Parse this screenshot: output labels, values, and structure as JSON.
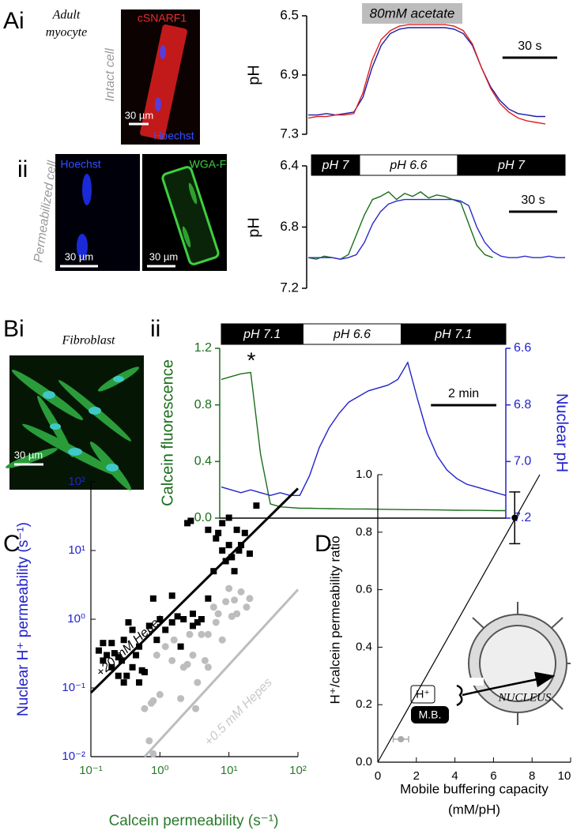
{
  "panel_labels": [
    "Ai",
    "ii",
    "Bi",
    "ii",
    "C",
    "D"
  ],
  "captions": {
    "adult": [
      "Adult",
      "myocyte"
    ],
    "intact": "Intact cell",
    "permeabilized": "Permeabilized cell",
    "fibroblast": "Fibroblast"
  },
  "micrographs": [
    {
      "labels": [
        "cSNARF1",
        "Hoechst"
      ],
      "scale": "30 µm"
    },
    {
      "labels": [
        "Hoechst"
      ],
      "scale": "30 µm"
    },
    {
      "labels": [
        "WGA-F"
      ],
      "scale": "30 µm"
    },
    {
      "scale": "30 µm"
    }
  ],
  "chart_data": [
    {
      "type": "line",
      "y_label": "pH",
      "annotation": {
        "label": "80mM acetate",
        "from": 29.5,
        "to": 84.5
      },
      "scale_bar": {
        "value": 30,
        "label": "30 s"
      },
      "x": [
        0,
        5,
        10,
        15,
        20,
        25,
        30,
        35,
        40,
        45,
        50,
        55,
        60,
        65,
        70,
        75,
        80,
        85,
        90,
        95,
        100,
        105,
        110,
        115,
        120,
        125,
        130
      ],
      "xlim": [
        0,
        130
      ],
      "ylim": [
        7.3,
        6.5
      ],
      "yticks": [
        6.5,
        6.9,
        7.3
      ],
      "series": [
        {
          "color": "#1a1aa8",
          "values": [
            7.17,
            7.17,
            7.16,
            7.17,
            7.16,
            7.15,
            7.05,
            6.85,
            6.7,
            6.62,
            6.59,
            6.58,
            6.58,
            6.58,
            6.58,
            6.58,
            6.59,
            6.62,
            6.7,
            6.85,
            6.98,
            7.07,
            7.13,
            7.16,
            7.17,
            7.18,
            7.18
          ]
        },
        {
          "color": "#e02020",
          "values": [
            7.19,
            7.18,
            7.18,
            7.17,
            7.17,
            7.16,
            7.02,
            6.8,
            6.66,
            6.6,
            6.57,
            6.56,
            6.56,
            6.56,
            6.56,
            6.56,
            6.57,
            6.6,
            6.69,
            6.85,
            6.99,
            7.09,
            7.15,
            7.19,
            7.21,
            7.22,
            7.23
          ]
        }
      ]
    },
    {
      "type": "line",
      "y_label": "pH",
      "scale_bar": {
        "value": 30,
        "label": "30 s"
      },
      "conditions": [
        {
          "label": "pH 7",
          "from": 2,
          "to": 32,
          "color": "#000"
        },
        {
          "label": "pH 6.6",
          "from": 32,
          "to": 93,
          "color": "#fff"
        },
        {
          "label": "pH 7",
          "from": 93,
          "to": 160,
          "color": "#000"
        }
      ],
      "x": [
        0,
        5,
        10,
        15,
        20,
        25,
        30,
        35,
        40,
        45,
        50,
        55,
        60,
        65,
        70,
        75,
        80,
        85,
        90,
        95,
        100,
        105,
        110,
        115,
        120,
        125,
        130,
        135,
        140,
        145,
        150,
        155,
        160
      ],
      "xlim": [
        0,
        160
      ],
      "ylim": [
        7.2,
        6.4
      ],
      "yticks": [
        6.4,
        6.8,
        7.2
      ],
      "series": [
        {
          "color": "#1a6e1a",
          "values": [
            7.0,
            7.01,
            6.99,
            7.0,
            7.01,
            6.98,
            6.85,
            6.72,
            6.62,
            6.6,
            6.57,
            6.62,
            6.58,
            6.6,
            6.57,
            6.61,
            6.59,
            6.6,
            6.62,
            6.64,
            6.78,
            6.92,
            6.98,
            7.0,
            null,
            null,
            null,
            null,
            null,
            null,
            null,
            null,
            null
          ]
        },
        {
          "color": "#2a2ad0",
          "values": [
            7.0,
            7.0,
            7.0,
            7.0,
            7.01,
            7.0,
            6.98,
            6.9,
            6.78,
            6.7,
            6.65,
            6.63,
            6.62,
            6.62,
            6.62,
            6.62,
            6.62,
            6.62,
            6.62,
            6.63,
            6.66,
            6.8,
            6.9,
            6.96,
            6.99,
            7.0,
            7.0,
            6.99,
            7.0,
            7.0,
            6.99,
            7.0,
            7.0
          ]
        }
      ]
    },
    {
      "type": "line",
      "y_label": "Calcein fluorescence",
      "y2_label": "Nuclear pH",
      "y_color": "#1a6e1a",
      "y2_color": "#2222cc",
      "asterisk": "*",
      "scale_bar": {
        "value": 2,
        "label": "2 min"
      },
      "conditions": [
        {
          "label": "pH 7.1",
          "from": 0,
          "to": 2.5,
          "color": "#000"
        },
        {
          "label": "pH 6.6",
          "from": 2.5,
          "to": 5.5,
          "color": "#fff"
        },
        {
          "label": "pH 7.1",
          "from": 5.5,
          "to": 8.7,
          "color": "#000"
        }
      ],
      "x": [
        0,
        0.3,
        0.6,
        0.9,
        1.2,
        1.5,
        1.8,
        2.1,
        2.4,
        2.7,
        3,
        3.3,
        3.6,
        3.9,
        4.2,
        4.5,
        4.8,
        5.1,
        5.4,
        5.7,
        6,
        6.3,
        6.6,
        6.9,
        7.2,
        7.5,
        7.8,
        8.1,
        8.4,
        8.7
      ],
      "xlim": [
        0,
        8.7
      ],
      "ylim": [
        0,
        1.2
      ],
      "yticks": [
        {
          "value": 0,
          "label": "0.0"
        },
        0.4,
        0.8,
        1.2
      ],
      "y2lim": [
        7.2,
        6.6
      ],
      "y2ticks": [
        6.6,
        6.8,
        {
          "value": 7,
          "label": "7.0"
        },
        7.2
      ],
      "series": [
        {
          "color": "#1a6e1a",
          "values": [
            0.98,
            1.0,
            1.02,
            1.03,
            0.45,
            0.1,
            0.08,
            0.075,
            0.07,
            0.07,
            0.068,
            0.067,
            0.066,
            0.065,
            0.065,
            0.064,
            0.063,
            0.062,
            0.061,
            0.06,
            0.06,
            0.059,
            0.058,
            0.057,
            0.056,
            0.055,
            0.055,
            0.054,
            0.053,
            0.053
          ]
        },
        {
          "color": "#2222cc",
          "axis": "y2",
          "values": [
            7.09,
            7.1,
            7.11,
            7.1,
            7.11,
            7.12,
            7.11,
            7.12,
            7.12,
            7.05,
            6.95,
            6.88,
            6.83,
            6.79,
            6.77,
            6.75,
            6.74,
            6.73,
            6.71,
            6.65,
            6.78,
            6.9,
            6.98,
            7.03,
            7.06,
            7.08,
            7.09,
            7.1,
            7.11,
            7.12
          ]
        }
      ]
    },
    {
      "type": "scatter",
      "log": true,
      "x_label": "Calcein permeability (s⁻¹)",
      "y_label": "Nuclear H⁺ permeability (s⁻¹)",
      "x_color": "#2a7a2a",
      "y_color": "#2222cc",
      "xlim": [
        0.1,
        100
      ],
      "ylim": [
        0.01,
        100
      ],
      "xticks": [
        {
          "value": 0.1,
          "label": "10⁻¹"
        },
        {
          "value": 1,
          "label": "10⁰"
        },
        {
          "value": 10,
          "label": "10¹"
        },
        {
          "value": 100,
          "label": "10²"
        }
      ],
      "yticks": [
        {
          "value": 0.01,
          "label": "10⁻²"
        },
        {
          "value": 0.1,
          "label": "10⁻¹"
        },
        {
          "value": 1,
          "label": "10⁰"
        },
        {
          "value": 10,
          "label": "10¹"
        },
        {
          "value": 100,
          "label": "10²"
        }
      ],
      "series": [
        {
          "name": "+20 mM Hepes",
          "color": "#000",
          "marker": "square",
          "x": [
            0.13,
            0.15,
            0.17,
            0.2,
            0.2,
            0.22,
            0.25,
            0.28,
            0.3,
            0.3,
            0.35,
            0.33,
            0.4,
            0.4,
            0.45,
            0.5,
            0.5,
            0.55,
            0.6,
            0.7,
            0.8,
            0.9,
            1,
            1.2,
            1.5,
            1.8,
            2,
            2.2,
            2.5,
            2.8,
            3,
            3.5,
            4,
            5,
            5,
            6,
            6.5,
            7,
            8,
            8,
            9,
            10,
            10,
            11,
            12,
            13,
            14,
            15,
            17,
            20,
            25,
            0.15,
            0.25,
            1.5,
            3
          ],
          "values": [
            0.35,
            0.25,
            0.3,
            0.45,
            0.2,
            0.32,
            0.28,
            0.25,
            0.5,
            0.12,
            0.9,
            0.15,
            0.7,
            0.2,
            0.3,
            0.4,
            0.12,
            0.18,
            0.17,
            0.8,
            2,
            0.5,
            1,
            0.7,
            0.9,
            1.1,
            0.4,
            1,
            25,
            27,
            1.2,
            0.9,
            1,
            2,
            20,
            5,
            15,
            18,
            10,
            25,
            7,
            12,
            30,
            8,
            5,
            20,
            10,
            12,
            18,
            9,
            45,
            0.45,
            0.15,
            2.2,
            0.8
          ],
          "fit": {
            "x": [
              0.1,
              100
            ],
            "y": [
              0.085,
              80
            ]
          }
        },
        {
          "name": "+0.5 mM Hepes",
          "color": "#bdbdbd",
          "marker": "circle",
          "x": [
            0.6,
            0.7,
            0.75,
            0.8,
            0.9,
            1,
            1.2,
            1.5,
            1.6,
            2,
            2.2,
            2.5,
            2.7,
            3,
            3.3,
            3.5,
            4,
            5,
            5,
            6,
            6.5,
            7,
            8,
            9,
            10,
            11,
            12,
            13,
            15,
            18,
            20,
            0.8,
            4.5
          ],
          "values": [
            0.05,
            0.017,
            0.06,
            0.065,
            0.3,
            0.08,
            0.4,
            0.25,
            0.5,
            0.07,
            0.2,
            0.22,
            0.6,
            0.3,
            0.05,
            0.12,
            0.6,
            0.2,
            0.6,
            1.5,
            0.9,
            1.2,
            0.5,
            1.8,
            2.8,
            1.1,
            1.9,
            1.2,
            2.5,
            1.5,
            2,
            0.011,
            0.25
          ],
          "fit": {
            "x": [
              0.6,
              100
            ],
            "y": [
              0.01,
              2.7
            ]
          }
        }
      ]
    },
    {
      "type": "scatter",
      "x_label": [
        "Mobile buffering capacity",
        "(mM/pH)"
      ],
      "y_label": "H⁺/calcein permeability ratio",
      "xlim": [
        0,
        10
      ],
      "ylim": [
        0,
        1
      ],
      "xticks": [
        0,
        2,
        4,
        6,
        8,
        10
      ],
      "yticks": [
        {
          "value": 0,
          "label": "0.0"
        },
        0.2,
        0.4,
        0.6,
        0.8,
        {
          "value": 1,
          "label": "1.0"
        }
      ],
      "fit": {
        "x": [
          0,
          8.4
        ],
        "y": [
          0,
          1
        ]
      },
      "series": [
        {
          "color": "#000",
          "marker": "circle",
          "x": [
            7.1
          ],
          "values": [
            0.85
          ],
          "yerr": [
            0.09
          ]
        },
        {
          "color": "#aaa",
          "marker": "circle",
          "x": [
            1.2
          ],
          "values": [
            0.08
          ],
          "xerr": [
            0.4
          ]
        }
      ],
      "diagram": {
        "ion": "H⁺",
        "buffer": "M.B.",
        "nucleus": "NUCLEUS"
      }
    }
  ]
}
